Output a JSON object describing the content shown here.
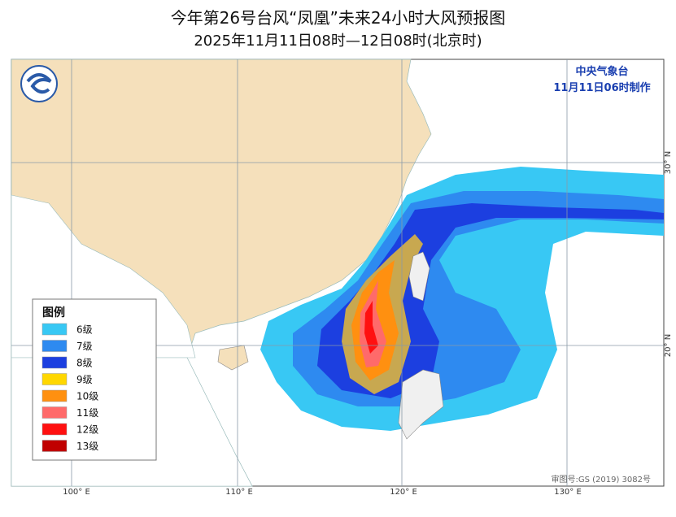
{
  "header": {
    "title": "今年第26号台风“凤凰”未来24小时大风预报图",
    "subtitle": "2025年11月11日08时—12日08时(北京时)"
  },
  "agency": {
    "name": "中央气象台",
    "issued": "11月11日06时制作"
  },
  "legend": {
    "title": "图例",
    "items": [
      {
        "label": "6级",
        "color": "#38c8f4"
      },
      {
        "label": "7级",
        "color": "#2e8af0"
      },
      {
        "label": "8级",
        "color": "#1c3fe0"
      },
      {
        "label": "9级",
        "color": "#ffd700"
      },
      {
        "label": "10级",
        "color": "#ff9010"
      },
      {
        "label": "11级",
        "color": "#ff6a6a"
      },
      {
        "label": "12级",
        "color": "#ff1010"
      },
      {
        "label": "13级",
        "color": "#c00000"
      }
    ]
  },
  "axes": {
    "longitude": [
      "100° E",
      "110° E",
      "120° E",
      "130° E"
    ],
    "latitude": [
      "30° N",
      "20° N"
    ]
  },
  "footer": {
    "map_approval": "审图号:GS (2019) 3082号"
  }
}
